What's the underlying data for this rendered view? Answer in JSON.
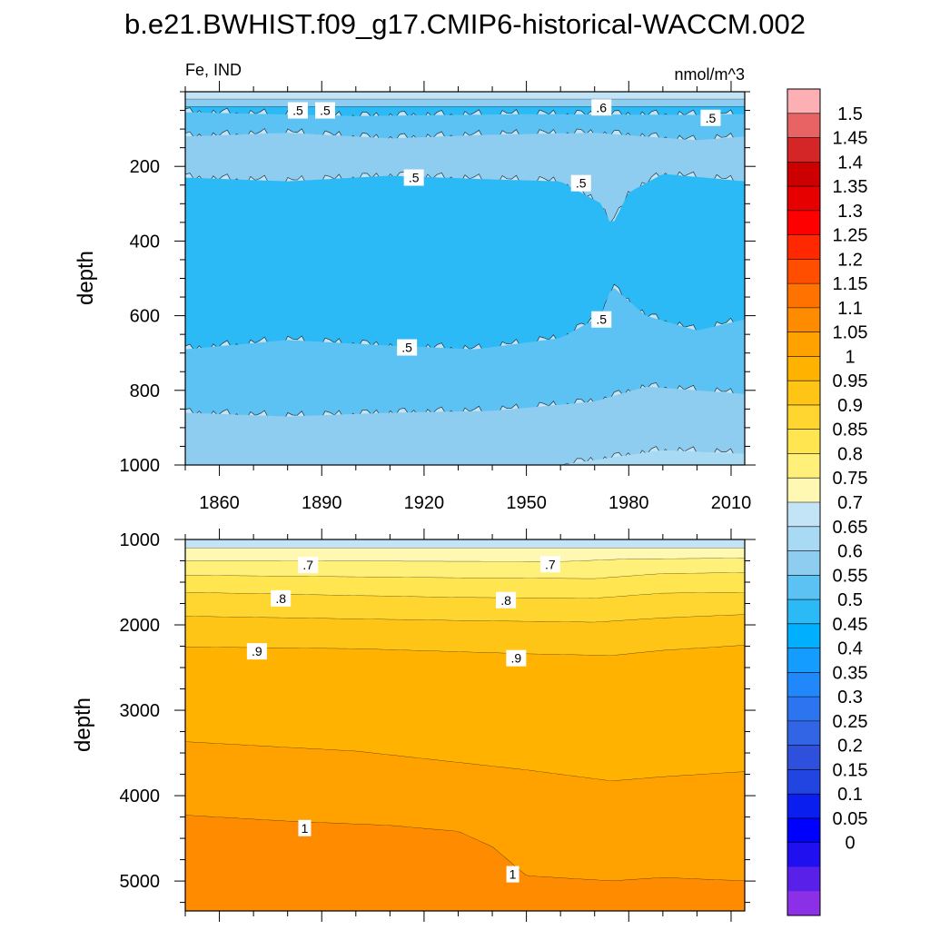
{
  "title": "b.e21.BWHIST.f09_g17.CMIP6-historical-WACCM.002",
  "left_string": "Fe, IND",
  "right_string": "nmol/m^3",
  "chart_data": {
    "type": "heatmap",
    "title": "b.e21.BWHIST.f09_g17.CMIP6-historical-WACCM.002",
    "variable": "Fe, IND",
    "units": "nmol/m^3",
    "x": {
      "start": 1850,
      "end": 2014,
      "ticks": [
        1860,
        1890,
        1920,
        1950,
        1980,
        2010
      ]
    },
    "panels": [
      {
        "name": "upper",
        "ylabel": "depth",
        "ylim": [
          0,
          1000
        ],
        "yticks": [
          200,
          400,
          600,
          800,
          1000
        ],
        "bands": [
          {
            "level": 0.65,
            "top": [
              0,
              0
            ],
            "bottom": [
              [
                1850,
                20
              ],
              [
                2014,
                20
              ]
            ]
          },
          {
            "level": 0.55,
            "top": [
              20,
              20
            ],
            "bottom": [
              [
                1850,
                40
              ],
              [
                2014,
                40
              ]
            ]
          },
          {
            "level": 0.45,
            "bottom": [
              [
                1850,
                55
              ],
              [
                1900,
                65
              ],
              [
                1950,
                60
              ],
              [
                2000,
                62
              ],
              [
                2014,
                60
              ]
            ]
          },
          {
            "level": 0.5,
            "bottom": [
              [
                1850,
                120
              ],
              [
                1880,
                110
              ],
              [
                1910,
                125
              ],
              [
                1940,
                115
              ],
              [
                1970,
                110
              ],
              [
                2000,
                130
              ],
              [
                2014,
                120
              ]
            ]
          },
          {
            "level": 0.55,
            "bottom": [
              [
                1850,
                230
              ],
              [
                1880,
                240
              ],
              [
                1910,
                225
              ],
              [
                1940,
                235
              ],
              [
                1960,
                240
              ],
              [
                1972,
                300
              ],
              [
                1975,
                360
              ],
              [
                1980,
                270
              ],
              [
                1990,
                220
              ],
              [
                2014,
                240
              ]
            ]
          },
          {
            "level": 0.45,
            "bottom": [
              [
                1850,
                690
              ],
              [
                1880,
                665
              ],
              [
                1910,
                680
              ],
              [
                1935,
                690
              ],
              [
                1960,
                660
              ],
              [
                1972,
                600
              ],
              [
                1975,
                520
              ],
              [
                1985,
                600
              ],
              [
                2000,
                640
              ],
              [
                2014,
                610
              ]
            ]
          },
          {
            "level": 0.5,
            "bottom": [
              [
                1850,
                860
              ],
              [
                1880,
                870
              ],
              [
                1910,
                860
              ],
              [
                1940,
                855
              ],
              [
                1970,
                830
              ],
              [
                1985,
                790
              ],
              [
                2000,
                800
              ],
              [
                2014,
                810
              ]
            ]
          },
          {
            "level": 0.55,
            "bottom": [
              [
                1850,
                1000
              ],
              [
                1960,
                1000
              ],
              [
                1975,
                980
              ],
              [
                1990,
                960
              ],
              [
                2014,
                970
              ]
            ]
          },
          {
            "level": 0.6,
            "bottom": [
              [
                1850,
                1000
              ],
              [
                2014,
                1000
              ]
            ]
          }
        ],
        "labels": [
          {
            "text": ".5",
            "x": 1883,
            "y": 50
          },
          {
            "text": ".5",
            "x": 1891,
            "y": 50
          },
          {
            "text": ".6",
            "x": 1972,
            "y": 42
          },
          {
            "text": ".5",
            "x": 2004,
            "y": 70
          },
          {
            "text": ".5",
            "x": 1917,
            "y": 230
          },
          {
            "text": ".5",
            "x": 1966,
            "y": 245
          },
          {
            "text": ".5",
            "x": 1972,
            "y": 610
          },
          {
            "text": ".5",
            "x": 1915,
            "y": 685
          }
        ]
      },
      {
        "name": "lower",
        "ylabel": "depth",
        "ylim": [
          1000,
          5350
        ],
        "yticks": [
          1000,
          2000,
          3000,
          4000,
          5000
        ],
        "bands": [
          {
            "level": 0.65,
            "bottom": [
              [
                1850,
                1100
              ],
              [
                2014,
                1100
              ]
            ]
          },
          {
            "level": 0.7,
            "bottom": [
              [
                1850,
                1250
              ],
              [
                1960,
                1260
              ],
              [
                1980,
                1230
              ],
              [
                2014,
                1220
              ]
            ]
          },
          {
            "level": 0.75,
            "bottom": [
              [
                1850,
                1420
              ],
              [
                1930,
                1450
              ],
              [
                1970,
                1460
              ],
              [
                1990,
                1400
              ],
              [
                2014,
                1390
              ]
            ]
          },
          {
            "level": 0.8,
            "bottom": [
              [
                1850,
                1620
              ],
              [
                1930,
                1680
              ],
              [
                1970,
                1690
              ],
              [
                1990,
                1630
              ],
              [
                2014,
                1620
              ]
            ]
          },
          {
            "level": 0.85,
            "bottom": [
              [
                1850,
                1900
              ],
              [
                1930,
                1950
              ],
              [
                1970,
                1970
              ],
              [
                1990,
                1920
              ],
              [
                2014,
                1880
              ]
            ]
          },
          {
            "level": 0.9,
            "bottom": [
              [
                1850,
                2260
              ],
              [
                1900,
                2280
              ],
              [
                1950,
                2340
              ],
              [
                1975,
                2360
              ],
              [
                1990,
                2300
              ],
              [
                2014,
                2240
              ]
            ]
          },
          {
            "level": 0.95,
            "bottom": [
              [
                1850,
                3370
              ],
              [
                1900,
                3480
              ],
              [
                1950,
                3700
              ],
              [
                1975,
                3830
              ],
              [
                1990,
                3780
              ],
              [
                2014,
                3720
              ]
            ]
          },
          {
            "level": 1.0,
            "bottom": [
              [
                1850,
                4230
              ],
              [
                1880,
                4300
              ],
              [
                1910,
                4350
              ],
              [
                1930,
                4420
              ],
              [
                1940,
                4600
              ],
              [
                1950,
                4940
              ],
              [
                1975,
                5000
              ],
              [
                1990,
                4960
              ],
              [
                2014,
                5000
              ]
            ]
          },
          {
            "level": 1.05,
            "bottom": [
              [
                1850,
                5350
              ],
              [
                2014,
                5350
              ]
            ]
          }
        ],
        "labels": [
          {
            "text": ".7",
            "x": 1886,
            "y": 1300
          },
          {
            "text": ".7",
            "x": 1957,
            "y": 1290
          },
          {
            "text": ".8",
            "x": 1878,
            "y": 1690
          },
          {
            "text": ".8",
            "x": 1944,
            "y": 1710
          },
          {
            "text": ".9",
            "x": 1871,
            "y": 2310
          },
          {
            "text": ".9",
            "x": 1947,
            "y": 2390
          },
          {
            "text": "1",
            "x": 1885,
            "y": 4380
          },
          {
            "text": "1",
            "x": 1946,
            "y": 4920
          }
        ]
      }
    ],
    "colorbar": {
      "labels": [
        "1.5",
        "1.45",
        "1.4",
        "1.35",
        "1.3",
        "1.25",
        "1.2",
        "1.15",
        "1.1",
        "1.05",
        "1",
        "0.95",
        "0.9",
        "0.85",
        "0.8",
        "0.75",
        "0.7",
        "0.65",
        "0.6",
        "0.55",
        "0.5",
        "0.45",
        "0.4",
        "0.35",
        "0.3",
        "0.25",
        "0.2",
        "0.15",
        "0.1",
        "0.05",
        "0"
      ],
      "colors_top_to_bottom": [
        "#FCB0B4",
        "#E86464",
        "#D42626",
        "#CC0000",
        "#E60000",
        "#FF0000",
        "#FF2800",
        "#FF4E00",
        "#FF7200",
        "#FF8C00",
        "#FFA200",
        "#FFB300",
        "#FFC516",
        "#FFD630",
        "#FFE650",
        "#FFF07A",
        "#FFF8B2",
        "#C2E4F6",
        "#A8DAF4",
        "#8ECCF0",
        "#5CC2F4",
        "#2BBAF6",
        "#00B0FF",
        "#149CFF",
        "#2088FA",
        "#2C74F0",
        "#3264E6",
        "#2E50DC",
        "#2244E0",
        "#0A1EF0",
        "#0000FF",
        "#2010F0",
        "#5820E8",
        "#8C30E8"
      ]
    }
  }
}
